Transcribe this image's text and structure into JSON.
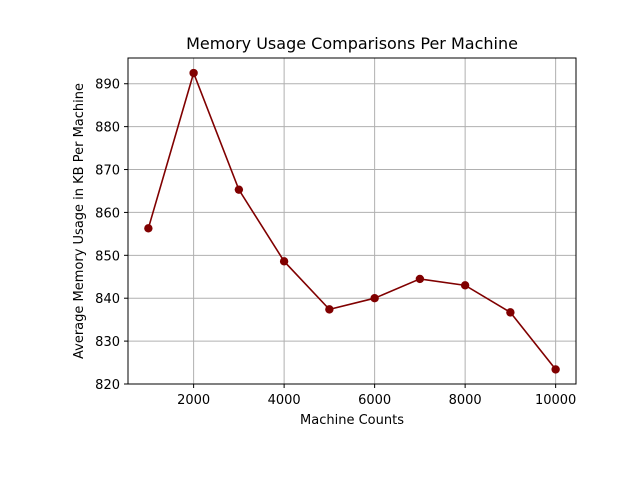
{
  "chart_data": {
    "type": "line",
    "title": "Memory Usage Comparisons Per Machine",
    "xlabel": "Machine Counts",
    "ylabel": "Average Memory Usage in KB Per Machine",
    "xlim": [
      550,
      10450
    ],
    "ylim": [
      820,
      896
    ],
    "xticks": [
      2000,
      4000,
      6000,
      8000,
      10000
    ],
    "yticks": [
      820,
      830,
      840,
      850,
      860,
      870,
      880,
      890
    ],
    "grid": true,
    "series": [
      {
        "color": "#800000",
        "marker": "circle",
        "x": [
          1000,
          2000,
          3000,
          4000,
          5000,
          6000,
          7000,
          8000,
          9000,
          10000
        ],
        "y": [
          856.3,
          892.5,
          865.3,
          848.6,
          837.4,
          840.0,
          844.5,
          843.0,
          836.7,
          823.4
        ]
      }
    ]
  }
}
